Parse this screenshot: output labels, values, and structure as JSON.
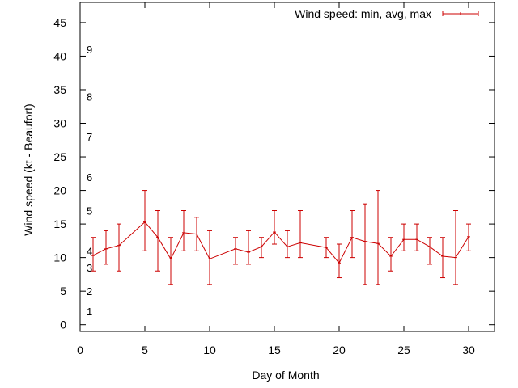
{
  "chart_data": {
    "type": "line",
    "title": "",
    "xlabel": "Day of Month",
    "ylabel": "Wind speed (kt - Beaufort)",
    "xlim": [
      0,
      32
    ],
    "ylim": [
      -1,
      48
    ],
    "xticks": [
      "0",
      "5",
      "10",
      "15",
      "20",
      "25",
      "30"
    ],
    "yticks": [
      "0",
      "5",
      "10",
      "15",
      "20",
      "25",
      "30",
      "35",
      "40",
      "45"
    ],
    "grid": false,
    "legend_position": "top-right",
    "series": [
      {
        "name": "Wind speed: min, avg, max",
        "color": "#cc0000",
        "error_bars": true,
        "points": [
          {
            "x": 1,
            "y": 10.3,
            "min": 8,
            "max": 13
          },
          {
            "x": 2,
            "y": 11.3,
            "min": 9,
            "max": 14
          },
          {
            "x": 3,
            "y": 11.8,
            "min": 8,
            "max": 15
          },
          {
            "x": 5,
            "y": 15.3,
            "min": 11,
            "max": 20
          },
          {
            "x": 6,
            "y": 13.0,
            "min": 8,
            "max": 17
          },
          {
            "x": 7,
            "y": 9.8,
            "min": 6,
            "max": 13
          },
          {
            "x": 8,
            "y": 13.7,
            "min": 11,
            "max": 17
          },
          {
            "x": 9,
            "y": 13.5,
            "min": 11,
            "max": 16
          },
          {
            "x": 10,
            "y": 9.8,
            "min": 6,
            "max": 14
          },
          {
            "x": 12,
            "y": 11.3,
            "min": 9,
            "max": 13
          },
          {
            "x": 13,
            "y": 10.8,
            "min": 9,
            "max": 14
          },
          {
            "x": 14,
            "y": 11.6,
            "min": 10,
            "max": 13
          },
          {
            "x": 15,
            "y": 13.8,
            "min": 12,
            "max": 17
          },
          {
            "x": 16,
            "y": 11.6,
            "min": 10,
            "max": 14
          },
          {
            "x": 17,
            "y": 12.2,
            "min": 10,
            "max": 17
          },
          {
            "x": 19,
            "y": 11.5,
            "min": 10,
            "max": 13
          },
          {
            "x": 20,
            "y": 9.2,
            "min": 7,
            "max": 12
          },
          {
            "x": 21,
            "y": 13.0,
            "min": 10,
            "max": 17
          },
          {
            "x": 22,
            "y": 12.4,
            "min": 6,
            "max": 18
          },
          {
            "x": 23,
            "y": 12.1,
            "min": 6,
            "max": 20
          },
          {
            "x": 24,
            "y": 10.2,
            "min": 8,
            "max": 13
          },
          {
            "x": 25,
            "y": 12.7,
            "min": 11,
            "max": 15
          },
          {
            "x": 26,
            "y": 12.7,
            "min": 11,
            "max": 15
          },
          {
            "x": 27,
            "y": 11.6,
            "min": 9,
            "max": 13
          },
          {
            "x": 28,
            "y": 10.2,
            "min": 7,
            "max": 13
          },
          {
            "x": 29,
            "y": 10.0,
            "min": 6,
            "max": 17
          },
          {
            "x": 30,
            "y": 13.1,
            "min": 11,
            "max": 15
          }
        ]
      }
    ],
    "annotations": [
      {
        "text": "1",
        "y": 2
      },
      {
        "text": "2",
        "y": 5
      },
      {
        "text": "3",
        "y": 8.5
      },
      {
        "text": "4",
        "y": 11
      },
      {
        "text": "5",
        "y": 17
      },
      {
        "text": "6",
        "y": 22
      },
      {
        "text": "7",
        "y": 28
      },
      {
        "text": "8",
        "y": 34
      },
      {
        "text": "9",
        "y": 41
      }
    ]
  }
}
